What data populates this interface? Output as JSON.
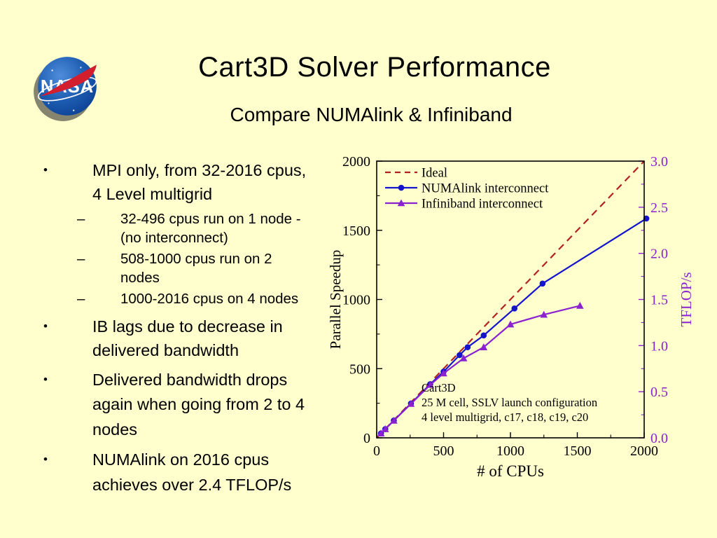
{
  "slide": {
    "title": "Cart3D Solver Performance",
    "subtitle": "Compare NUMAlink & Infiniband",
    "logo_text": "NASA"
  },
  "colors": {
    "background": "#FFFFCE",
    "ideal_line": "#B22222",
    "numalink_line": "#1414CC",
    "infiniband_line": "#8A22CF",
    "right_axis_text": "#8A22CF"
  },
  "bullets": [
    {
      "level": 1,
      "spaced": false,
      "text": "MPI only, from 32-2016 cpus,\n4 Level multigrid"
    },
    {
      "level": 2,
      "spaced": false,
      "text": "32-496 cpus run on 1 node -\n(no interconnect)"
    },
    {
      "level": 2,
      "spaced": false,
      "text": "508-1000 cpus run on 2\nnodes"
    },
    {
      "level": 2,
      "spaced": false,
      "text": "1000-2016 cpus on 4 nodes"
    },
    {
      "level": 1,
      "spaced": false,
      "text": "IB lags due to decrease in\ndelivered bandwidth"
    },
    {
      "level": 1,
      "spaced": true,
      "text": "Delivered bandwidth drops\nagain when going from 2 to 4\nnodes"
    },
    {
      "level": 1,
      "spaced": true,
      "text": "NUMAlink on 2016 cpus\nachieves over 2.4 TFLOP/s"
    }
  ],
  "chart_data": {
    "type": "line",
    "title": "",
    "xlabel": "# of CPUs",
    "ylabel": "Parallel Speedup",
    "y2label": "TFLOP/s",
    "xlim": [
      0,
      2000
    ],
    "ylim": [
      0,
      2000
    ],
    "y2lim": [
      0,
      3
    ],
    "xticks": [
      0,
      500,
      1000,
      1500,
      2000
    ],
    "yticks": [
      0,
      500,
      1000,
      1500,
      2000
    ],
    "y2ticks": [
      "0.0",
      "0.5",
      "1.0",
      "1.5",
      "2.0",
      "2.5",
      "3.0"
    ],
    "grid": false,
    "legend_position": "top-left",
    "annotation": [
      "Cart3D",
      "25 M cell, SSLV launch configuration",
      "4 level multigrid, c17, c18, c19, c20"
    ],
    "series": [
      {
        "name": "Ideal",
        "color": "#B22222",
        "style": "dashed",
        "marker": "none",
        "x": [
          0,
          2000
        ],
        "y": [
          0,
          2000
        ]
      },
      {
        "name": "NUMAlink interconnect",
        "color": "#1414CC",
        "style": "solid",
        "marker": "circle",
        "x": [
          32,
          64,
          128,
          256,
          400,
          500,
          620,
          680,
          800,
          1030,
          1240,
          2016
        ],
        "y": [
          32,
          63,
          125,
          248,
          388,
          478,
          598,
          655,
          740,
          935,
          1115,
          1585
        ]
      },
      {
        "name": "Infiniband interconnect",
        "color": "#8A22CF",
        "style": "solid",
        "marker": "triangle",
        "x": [
          32,
          64,
          128,
          256,
          400,
          500,
          650,
          800,
          1000,
          1250,
          1520
        ],
        "y": [
          32,
          63,
          124,
          246,
          383,
          466,
          575,
          655,
          820,
          890,
          955
        ]
      }
    ]
  }
}
